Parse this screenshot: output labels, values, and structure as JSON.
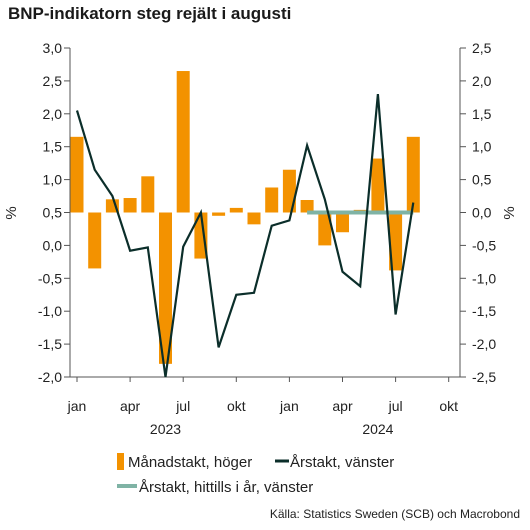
{
  "chart_data": {
    "type": "bar+line",
    "title": "BNP-indikatorn steg rejält i augusti",
    "left_axis": {
      "unit_label": "%",
      "ylim": [
        -2.0,
        3.0
      ],
      "tick_labels": [
        "3,0",
        "2,5",
        "2,0",
        "1,5",
        "1,0",
        "0,5",
        "0,0",
        "-0,5",
        "-1,0",
        "-1,5",
        "-2,0"
      ]
    },
    "right_axis": {
      "unit_label": "%",
      "ylim": [
        -2.5,
        2.5
      ],
      "tick_labels": [
        "2,5",
        "2,0",
        "1,5",
        "1,0",
        "0,5",
        "0,0",
        "-0,5",
        "-1,0",
        "-1,5",
        "-2,0",
        "-2,5"
      ]
    },
    "x_tick_labels": [
      "jan",
      "apr",
      "jul",
      "okt",
      "jan",
      "apr",
      "jul",
      "okt"
    ],
    "x_tick_months": [
      0,
      3,
      6,
      9,
      12,
      15,
      18,
      21
    ],
    "year_labels": [
      "2023",
      "2024"
    ],
    "months": [
      "2023-01",
      "2023-02",
      "2023-03",
      "2023-04",
      "2023-05",
      "2023-06",
      "2023-07",
      "2023-08",
      "2023-09",
      "2023-10",
      "2023-11",
      "2023-12",
      "2024-01",
      "2024-02",
      "2024-03",
      "2024-04",
      "2024-05",
      "2024-06",
      "2024-07",
      "2024-08"
    ],
    "series": [
      {
        "name": "Månadstakt, höger",
        "type": "bar",
        "axis": "right",
        "color": "#F39200",
        "values": [
          1.15,
          -0.85,
          0.2,
          0.22,
          0.55,
          -2.3,
          2.15,
          -0.7,
          -0.05,
          0.07,
          -0.18,
          0.38,
          0.65,
          0.19,
          -0.5,
          -0.3,
          0.04,
          0.82,
          -0.88,
          1.15
        ]
      },
      {
        "name": "Årstakt, vänster",
        "type": "line",
        "axis": "left",
        "color": "#0B2E2A",
        "values": [
          2.05,
          1.15,
          0.75,
          -0.08,
          -0.03,
          -2.0,
          -0.02,
          0.5,
          -1.55,
          -0.75,
          -0.72,
          0.3,
          0.38,
          1.52,
          0.7,
          -0.4,
          -0.62,
          2.3,
          -1.05,
          0.65
        ]
      },
      {
        "name": "Årstakt, hittills i år, vänster",
        "type": "line",
        "axis": "left",
        "color": "#7FB3A5",
        "start_month": 13,
        "end_month": 19,
        "values": [
          0.5,
          0.5
        ]
      }
    ],
    "source": "Källa: Statistics Sweden (SCB) och Macrobond"
  }
}
